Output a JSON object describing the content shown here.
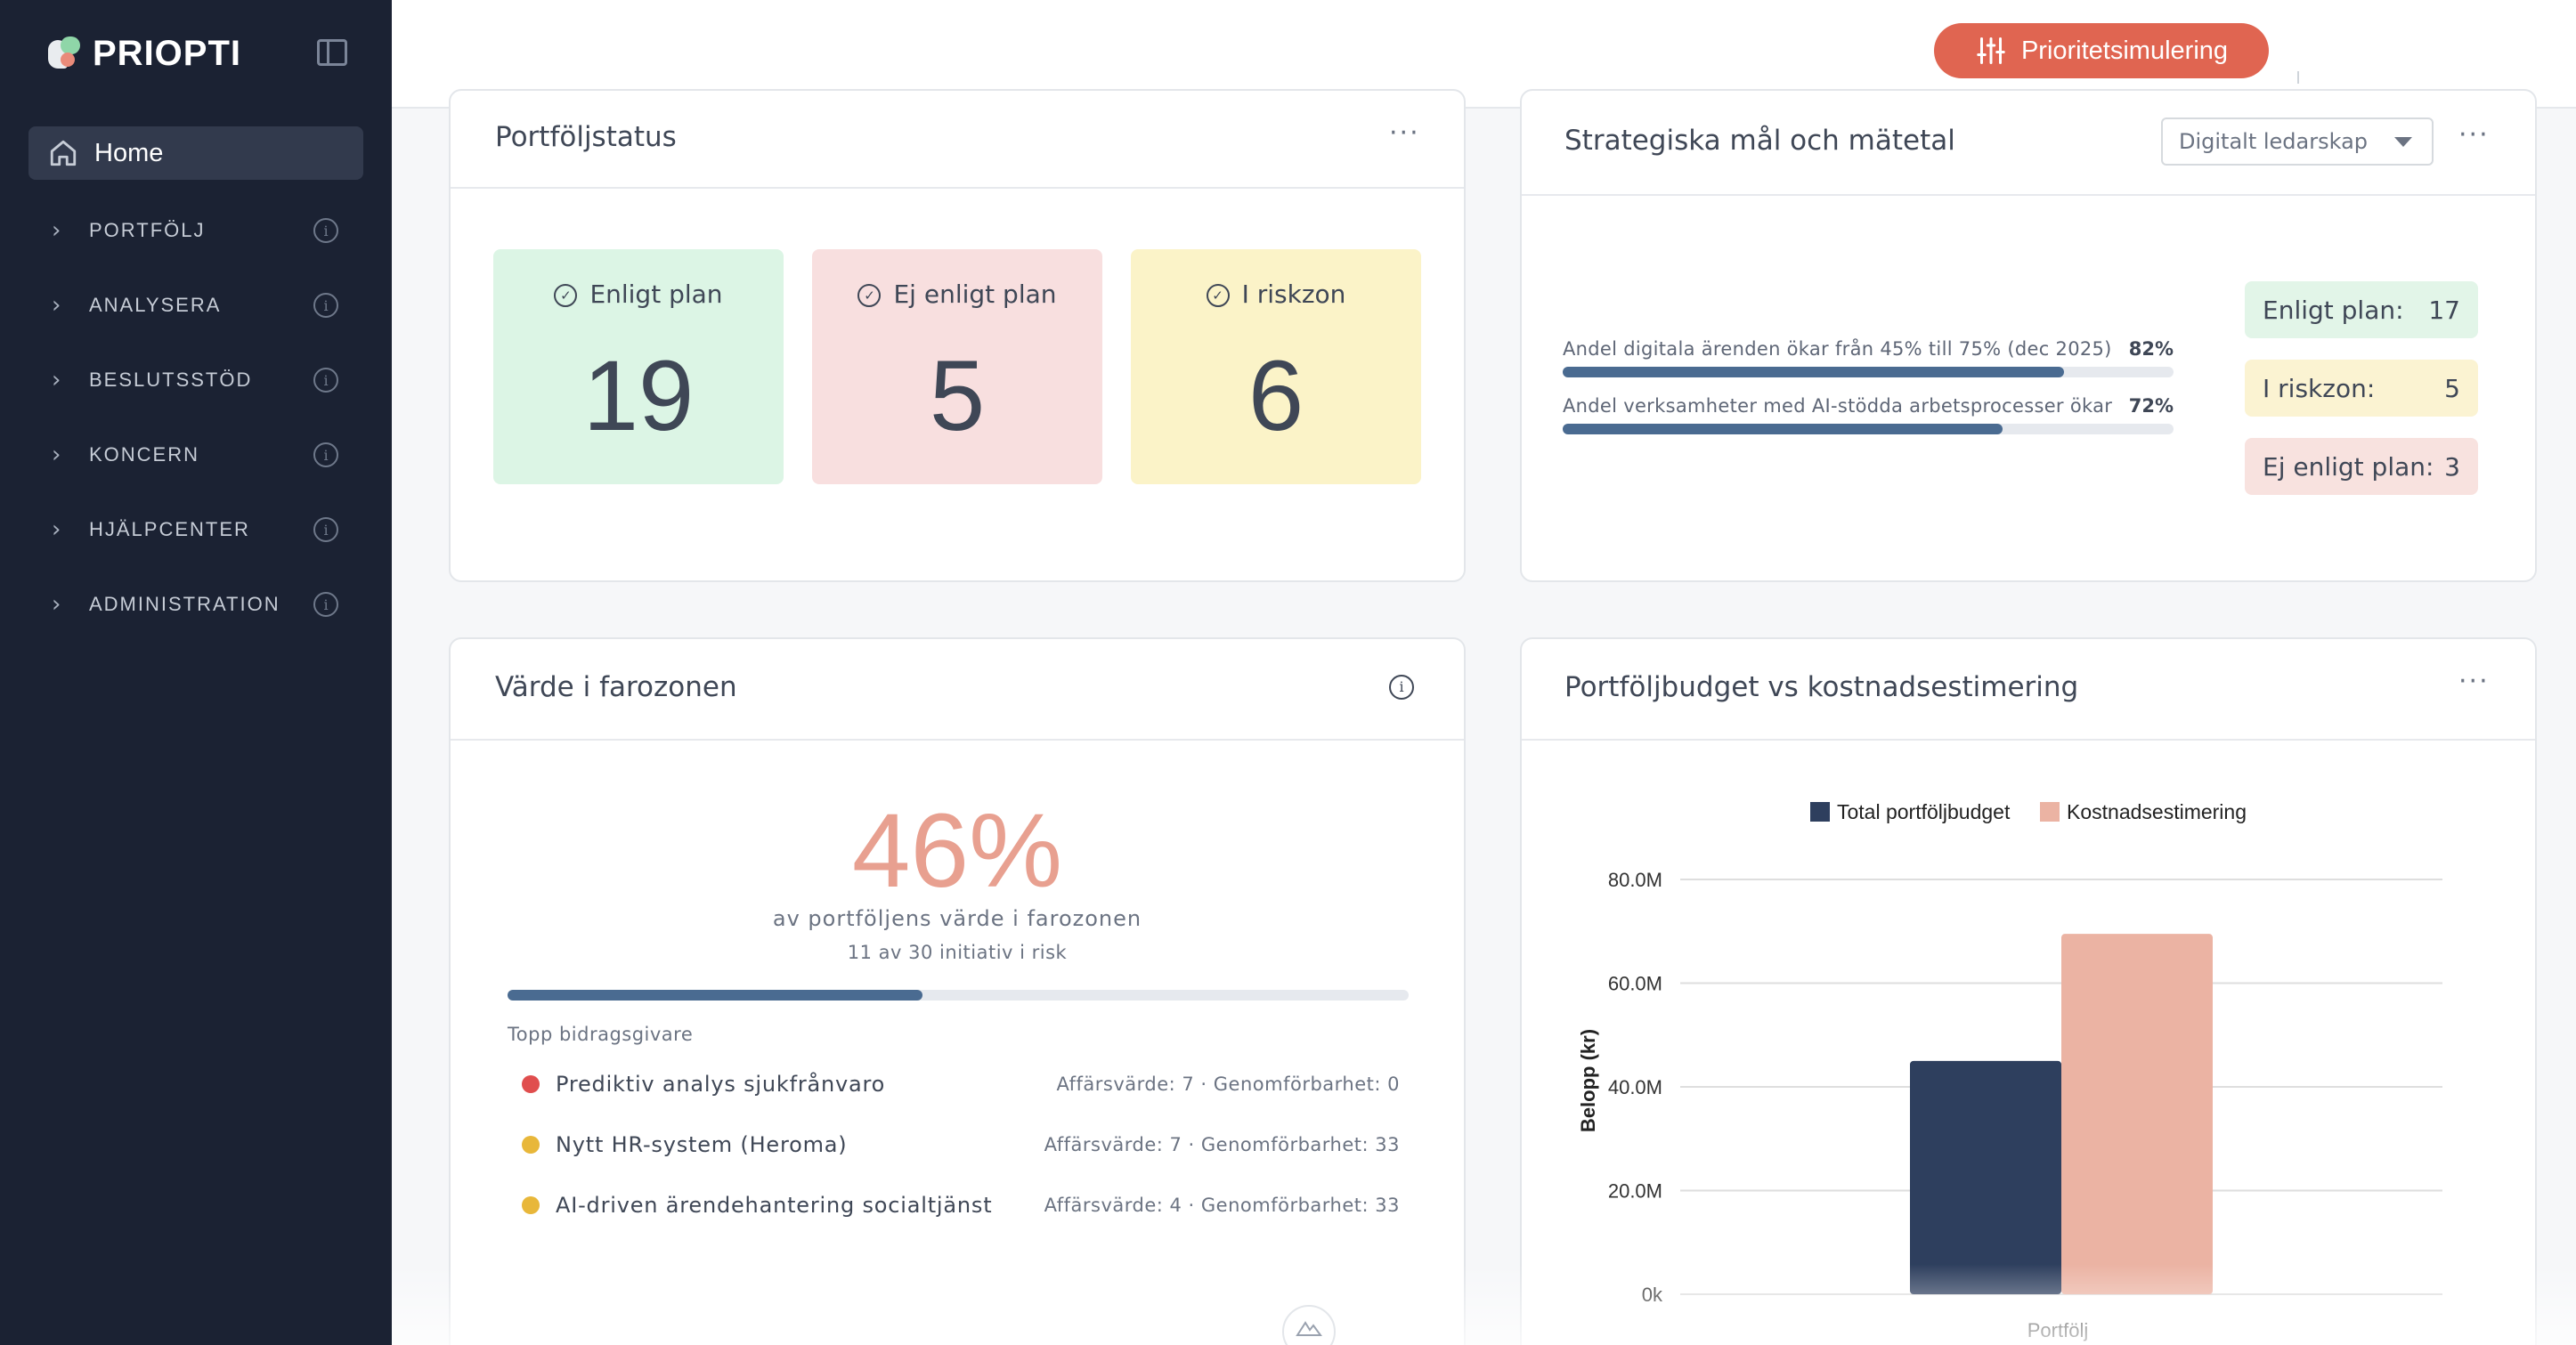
{
  "sidebar": {
    "logo": "PRIOPTI",
    "home": "Home",
    "items": [
      {
        "label": "PORTFÖLJ"
      },
      {
        "label": "ANALYSERA"
      },
      {
        "label": "BESLUTSSTÖD"
      },
      {
        "label": "KONCERN"
      },
      {
        "label": "HJÄLPCENTER"
      },
      {
        "label": "ADMINISTRATION"
      }
    ]
  },
  "topbar": {
    "prio_button": "Prioritetsimulering"
  },
  "portfolio_status": {
    "title": "Portföljstatus",
    "boxes": [
      {
        "label": "Enligt plan",
        "value": "19",
        "color": "#dcf5e5"
      },
      {
        "label": "Ej enligt plan",
        "value": "5",
        "color": "#f8dfdf"
      },
      {
        "label": "I riskzon",
        "value": "6",
        "color": "#fbf3c8"
      }
    ]
  },
  "strategic": {
    "title": "Strategiska mål och mätetal",
    "select_value": "Digitalt ledarskap",
    "metrics": [
      {
        "text": "Andel digitala ärenden ökar från 45% till 75% (dec 2025)",
        "pct_label": "82%",
        "value": 0.82
      },
      {
        "text": "Andel verksamheter med AI-stödda arbetsprocesser ökar",
        "pct_label": "72%",
        "value": 0.72
      }
    ],
    "pills": [
      {
        "label": "Enligt plan:",
        "value": "17",
        "color": "#e2f5e8"
      },
      {
        "label": "I riskzon:",
        "value": "5",
        "color": "#fbf3d2"
      },
      {
        "label": "Ej enligt plan:",
        "value": "3",
        "color": "#f8e2df"
      }
    ]
  },
  "danger_zone": {
    "title": "Värde i farozonen",
    "percent": "46%",
    "subtitle": "av portföljens värde i farozonen",
    "count": "11 av 30 initiativ i risk",
    "progress": 0.46,
    "top_label": "Topp bidragsgivare",
    "contributors": [
      {
        "name": "Prediktiv analys sjukfrånvaro",
        "meta": "Affärsvärde: 7 · Genomförbarhet: 0",
        "color": "#e04e4e"
      },
      {
        "name": "Nytt HR-system (Heroma)",
        "meta": "Affärsvärde: 7 · Genomförbarhet: 33",
        "color": "#e8b73a"
      },
      {
        "name": "AI-driven ärendehantering socialtjänst",
        "meta": "Affärsvärde: 4 · Genomförbarhet: 33",
        "color": "#e8b73a"
      }
    ]
  },
  "budget": {
    "title": "Portföljbudget vs kostnadsestimering"
  },
  "chart_data": {
    "type": "bar",
    "categories": [
      "Portfölj"
    ],
    "series": [
      {
        "name": "Total portföljbudget",
        "values": [
          45000000
        ],
        "color": "#2e3f5e"
      },
      {
        "name": "Kostnadsestimering",
        "values": [
          69500000
        ],
        "color": "#ebb3a3"
      }
    ],
    "ylabel": "Belopp (kr)",
    "ylim": [
      0,
      80000000
    ],
    "yticks": [
      0,
      20000000,
      40000000,
      60000000,
      80000000
    ],
    "ytick_labels": [
      "0k",
      "20.0M",
      "40.0M",
      "60.0M",
      "80.0M"
    ],
    "legend": "top-center",
    "grid": true
  }
}
